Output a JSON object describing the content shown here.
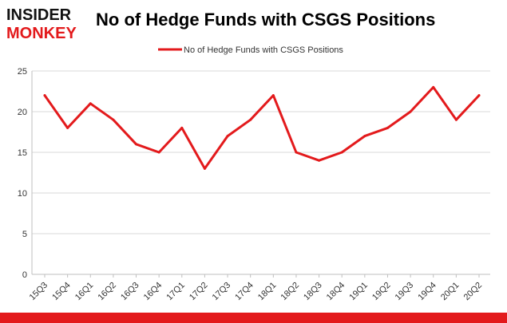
{
  "logo": {
    "line1": "INSIDER",
    "line2": "MONKEY"
  },
  "colors": {
    "series": "#e31a1c",
    "logo_top": "#111111",
    "logo_bottom": "#e31a1c",
    "frame": "#e31a1c",
    "grid": "#d9d9d9",
    "axis": "#bfbfbf"
  },
  "chart_data": {
    "type": "line",
    "title": "No of Hedge Funds with CSGS Positions",
    "xlabel": "",
    "ylabel": "",
    "ylim": [
      0,
      25
    ],
    "yticks": [
      "0",
      "5",
      "10",
      "15",
      "20",
      "25"
    ],
    "legend": {
      "placement": "top-center",
      "label": "No of Hedge Funds with CSGS Positions"
    },
    "grid": true,
    "categories": [
      "15Q3",
      "15Q4",
      "16Q1",
      "16Q2",
      "16Q3",
      "16Q4",
      "17Q1",
      "17Q2",
      "17Q3",
      "17Q4",
      "18Q1",
      "18Q2",
      "18Q3",
      "18Q4",
      "19Q1",
      "19Q2",
      "19Q3",
      "19Q4",
      "20Q1",
      "20Q2"
    ],
    "series": [
      {
        "name": "No of Hedge Funds with CSGS Positions",
        "values": [
          22,
          18,
          21,
          19,
          16,
          15,
          18,
          13,
          17,
          19,
          22,
          15,
          14,
          15,
          17,
          18,
          20,
          23,
          19,
          22
        ]
      }
    ]
  }
}
